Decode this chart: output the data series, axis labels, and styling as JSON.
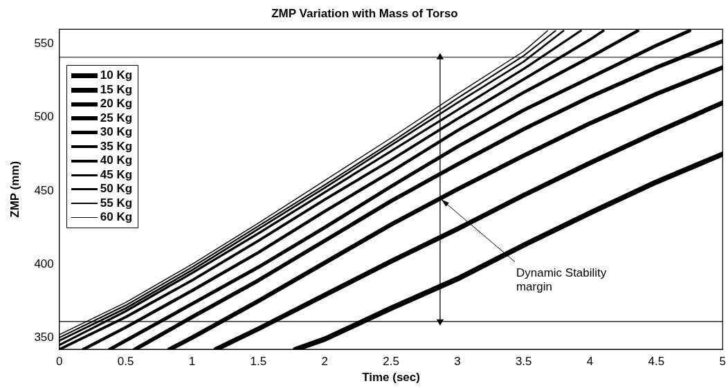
{
  "chart_data": {
    "type": "line",
    "title": "ZMP Variation with Mass of Torso",
    "xlabel": "Time (sec)",
    "ylabel": "ZMP (mm)",
    "xlim": [
      0,
      5
    ],
    "xticks": [
      0,
      0.5,
      1,
      1.5,
      2,
      2.5,
      3,
      3.5,
      4,
      4.5,
      5
    ],
    "ylim": [
      342,
      560
    ],
    "yticks": [
      350,
      400,
      450,
      500,
      550
    ],
    "legend": "top left",
    "marker": "none",
    "ref_lines": [
      {
        "axis": "y",
        "value": 541,
        "color": "#000000"
      },
      {
        "axis": "y",
        "value": 361,
        "color": "#000000"
      }
    ],
    "annotations": [
      {
        "text": "Dynamic Stability margin",
        "x": 2.87,
        "y": 445
      }
    ],
    "series": [
      {
        "name": "10 Kg",
        "color": "#000000",
        "x": [
          1.78,
          2,
          2.5,
          3,
          3.5,
          4,
          4.5,
          5
        ],
        "values": [
          342,
          349,
          370,
          390,
          413,
          435,
          456,
          475
        ]
      },
      {
        "name": "15 Kg",
        "color": "#000000",
        "x": [
          1.18,
          1.5,
          2,
          2.5,
          3,
          3.5,
          4,
          4.5,
          5
        ],
        "values": [
          342,
          356,
          379,
          402,
          424,
          447,
          469,
          490,
          510
        ]
      },
      {
        "name": "20 Kg",
        "color": "#000000",
        "x": [
          0.83,
          1,
          1.5,
          2,
          2.5,
          3,
          3.5,
          4,
          4.5,
          5
        ],
        "values": [
          342,
          350,
          375,
          401,
          427,
          451,
          474,
          496,
          516,
          534
        ]
      },
      {
        "name": "25 Kg",
        "color": "#000000",
        "x": [
          0.57,
          1,
          1.5,
          2,
          2.5,
          3,
          3.5,
          4,
          4.5,
          5
        ],
        "values": [
          342,
          364,
          389,
          416,
          443,
          468,
          492,
          514,
          534,
          552
        ]
      },
      {
        "name": "30 Kg",
        "color": "#000000",
        "x": [
          0.38,
          0.5,
          1,
          1.5,
          2,
          2.5,
          3,
          3.5,
          4,
          4.5,
          4.75
        ],
        "values": [
          342,
          348,
          373,
          398,
          425,
          453,
          480,
          505,
          527,
          549,
          559
        ]
      },
      {
        "name": "35 Kg",
        "color": "#000000",
        "x": [
          0.18,
          0.5,
          1,
          1.5,
          2,
          2.5,
          3,
          3.5,
          4,
          4.36
        ],
        "values": [
          342,
          357,
          382,
          408,
          436,
          463,
          491,
          517,
          541,
          559
        ]
      },
      {
        "name": "40 Kg",
        "color": "#000000",
        "x": [
          0,
          0.5,
          1,
          1.5,
          2,
          2.5,
          3,
          3.5,
          4,
          4.1
        ],
        "values": [
          342,
          364,
          389,
          416,
          444,
          471,
          499,
          526,
          553,
          559
        ]
      },
      {
        "name": "45 Kg",
        "color": "#000000",
        "x": [
          0,
          0.5,
          1,
          1.5,
          2,
          2.5,
          3,
          3.5,
          3.93
        ],
        "values": [
          345,
          368,
          394,
          421,
          449,
          477,
          505,
          533,
          559
        ]
      },
      {
        "name": "50 Kg",
        "color": "#000000",
        "x": [
          0,
          0.5,
          1,
          1.5,
          2,
          2.5,
          3,
          3.5,
          3.8
        ],
        "values": [
          348,
          370,
          396,
          424,
          452,
          481,
          510,
          538,
          559
        ]
      },
      {
        "name": "55 Kg",
        "color": "#000000",
        "x": [
          0,
          0.5,
          1,
          1.5,
          2,
          2.5,
          3,
          3.5,
          3.74
        ],
        "values": [
          350,
          372,
          398,
          426,
          454,
          483,
          513,
          542,
          559
        ]
      },
      {
        "name": "60 Kg",
        "color": "#000000",
        "x": [
          0,
          0.5,
          1,
          1.5,
          2,
          2.5,
          3,
          3.5,
          3.68
        ],
        "values": [
          352,
          374,
          400,
          428,
          457,
          486,
          516,
          545,
          559
        ]
      },
      {
        "type": "line",
        "color": "#000000",
        "marker": "triangle",
        "x": [
          2.87,
          2.87
        ],
        "values": [
          541,
          361
        ]
      }
    ]
  }
}
